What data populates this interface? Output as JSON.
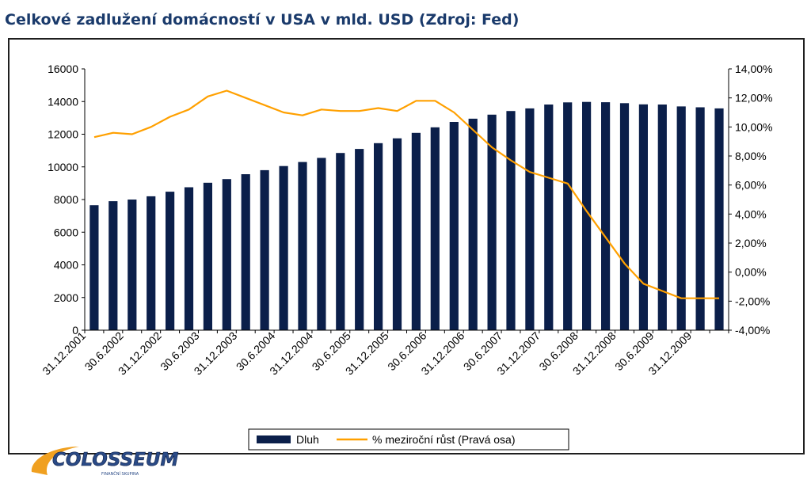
{
  "title": "Celkové zadlužení domácností v USA v mld. USD (Zdroj: Fed)",
  "logo": {
    "text": "COLOSSEUM",
    "tagline": "FINANČNÍ SKUPINA"
  },
  "colors": {
    "bar": "#0b1f4a",
    "line": "#ffa000",
    "title": "#1a3a6b"
  },
  "chart_data": {
    "type": "bar+line",
    "grid": false,
    "legend_position": "bottom-center",
    "left_axis": {
      "min": 0,
      "max": 16000,
      "step": 2000,
      "ticks": [
        "0",
        "2000",
        "4000",
        "6000",
        "8000",
        "10000",
        "12000",
        "14000",
        "16000"
      ]
    },
    "right_axis": {
      "min": -4,
      "max": 14,
      "step": 2,
      "ticks": [
        "-4,00%",
        "-2,00%",
        "0,00%",
        "2,00%",
        "4,00%",
        "6,00%",
        "8,00%",
        "10,00%",
        "12,00%",
        "14,00%"
      ]
    },
    "x_tick_labels": [
      "31.12.2001",
      "30.6.2002",
      "31.12.2002",
      "30.6.2003",
      "31.12.2003",
      "30.6.2004",
      "31.12.2004",
      "30.6.2005",
      "31.12.2005",
      "30.6.2006",
      "31.12.2006",
      "30.6.2007",
      "31.12.2007",
      "30.6.2008",
      "31.12.2008",
      "30.6.2009",
      "31.12.2009"
    ],
    "series": [
      {
        "name": "Dluh",
        "axis": "left",
        "kind": "bar",
        "values": [
          7650,
          7900,
          8000,
          8200,
          8480,
          8750,
          9030,
          9250,
          9550,
          9800,
          10050,
          10300,
          10550,
          10850,
          11100,
          11450,
          11750,
          12080,
          12420,
          12750,
          12950,
          13200,
          13420,
          13580,
          13820,
          13950,
          13980,
          13960,
          13900,
          13830,
          13820,
          13700,
          13650,
          13580
        ]
      },
      {
        "name": "% meziroční růst (Pravá osa)",
        "axis": "right",
        "kind": "line",
        "values": [
          9.3,
          9.6,
          9.5,
          10.0,
          10.7,
          11.2,
          12.1,
          12.5,
          12.0,
          11.5,
          11.0,
          10.8,
          11.2,
          11.1,
          11.1,
          11.3,
          11.1,
          11.8,
          11.8,
          11.0,
          9.8,
          8.6,
          7.7,
          6.9,
          6.5,
          6.1,
          4.2,
          2.4,
          0.6,
          -0.8,
          -1.3,
          -1.8,
          -1.8,
          -1.8
        ]
      }
    ]
  }
}
